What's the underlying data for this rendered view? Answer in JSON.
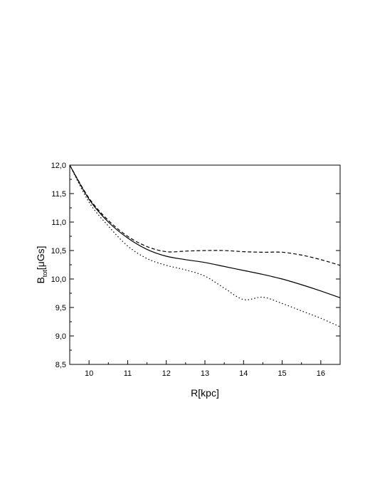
{
  "chart_data": {
    "type": "line",
    "xlabel": "R[kpc]",
    "ylabel": {
      "main": "B",
      "subscript": "tot",
      "unit": "[μGs]"
    },
    "xlim": [
      9.5,
      16.5
    ],
    "ylim": [
      8.5,
      12.0
    ],
    "x_ticks": [
      10,
      11,
      12,
      13,
      14,
      15,
      16
    ],
    "y_ticks": [
      "8,5",
      "9,0",
      "9,5",
      "10,0",
      "10,5",
      "11,0",
      "11,5",
      "12,0"
    ],
    "y_tick_values": [
      8.5,
      9.0,
      9.5,
      10.0,
      10.5,
      11.0,
      11.5,
      12.0
    ],
    "grid": false,
    "series": [
      {
        "style": "solid",
        "x": [
          9.5,
          10.0,
          10.5,
          11.0,
          11.5,
          12.0,
          12.5,
          13.0,
          13.5,
          14.0,
          14.5,
          15.0,
          15.5,
          16.0,
          16.5
        ],
        "y": [
          12.0,
          11.4,
          11.0,
          10.72,
          10.52,
          10.4,
          10.34,
          10.29,
          10.22,
          10.15,
          10.08,
          10.0,
          9.9,
          9.79,
          9.67
        ]
      },
      {
        "style": "dashed",
        "x": [
          9.5,
          10.0,
          10.5,
          11.0,
          11.5,
          12.0,
          12.5,
          13.0,
          13.5,
          14.0,
          14.5,
          15.0,
          15.5,
          16.0,
          16.5
        ],
        "y": [
          12.0,
          11.42,
          11.03,
          10.75,
          10.57,
          10.48,
          10.49,
          10.5,
          10.5,
          10.48,
          10.47,
          10.47,
          10.42,
          10.34,
          10.24
        ]
      },
      {
        "style": "dotted",
        "x": [
          9.5,
          10.0,
          10.5,
          11.0,
          11.5,
          12.0,
          12.5,
          13.0,
          13.5,
          14.0,
          14.5,
          15.0,
          15.5,
          16.0,
          16.5
        ],
        "y": [
          12.0,
          11.35,
          10.93,
          10.58,
          10.36,
          10.24,
          10.16,
          10.05,
          9.84,
          9.64,
          9.68,
          9.57,
          9.44,
          9.31,
          9.16
        ]
      }
    ]
  }
}
